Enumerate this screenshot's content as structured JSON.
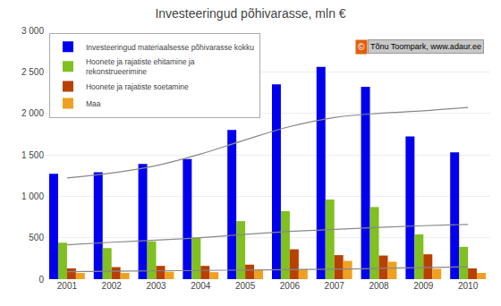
{
  "chart_data": {
    "type": "bar",
    "title": "Investeeringud põhivarasse, mln €",
    "categories": [
      "2001",
      "2002",
      "2003",
      "2004",
      "2005",
      "2006",
      "2007",
      "2008",
      "2009",
      "2010"
    ],
    "series": [
      {
        "name": "Investeeringud materiaalsesse põhivarasse kokku",
        "color": "#0000EE",
        "values": [
          1270,
          1290,
          1390,
          1450,
          1800,
          2350,
          2560,
          2320,
          1720,
          1530
        ]
      },
      {
        "name": "Hoonete ja rajatiste ehitamine ja\nrekonstrueerimine",
        "color": "#80C020",
        "values": [
          440,
          375,
          455,
          500,
          700,
          820,
          960,
          870,
          540,
          390
        ]
      },
      {
        "name": "Hoonete ja rajatiste soetamine",
        "color": "#B84000",
        "values": [
          130,
          145,
          160,
          160,
          175,
          360,
          290,
          285,
          300,
          130
        ]
      },
      {
        "name": "Maa",
        "color": "#F0A020",
        "values": [
          75,
          75,
          90,
          85,
          110,
          120,
          220,
          210,
          125,
          75
        ]
      },
      {
        "type": "line",
        "color": "#888888",
        "values": [
          1220,
          1280,
          1370,
          1510,
          1680,
          1840,
          1950,
          2000,
          2030,
          2070
        ]
      },
      {
        "type": "line",
        "color": "#888888",
        "values": [
          415,
          445,
          470,
          500,
          540,
          575,
          600,
          625,
          645,
          660
        ]
      },
      {
        "type": "line",
        "color": "#888888",
        "values": [
          90,
          95,
          100,
          105,
          110,
          115,
          120,
          130,
          140,
          150
        ]
      }
    ],
    "ylim": [
      0,
      3000
    ],
    "yticks": [
      0,
      500,
      {
        "value": 1000,
        "label": "1 000"
      },
      {
        "value": 1500,
        "label": "1 500"
      },
      {
        "value": 2000,
        "label": "2 000"
      },
      {
        "value": 2500,
        "label": "2 500"
      },
      {
        "value": 3000,
        "label": "3 000"
      }
    ],
    "grid": true,
    "legend": "upper left",
    "annotations": [
      "©",
      "Tõnu Toompark, www.adaur.ee"
    ]
  }
}
